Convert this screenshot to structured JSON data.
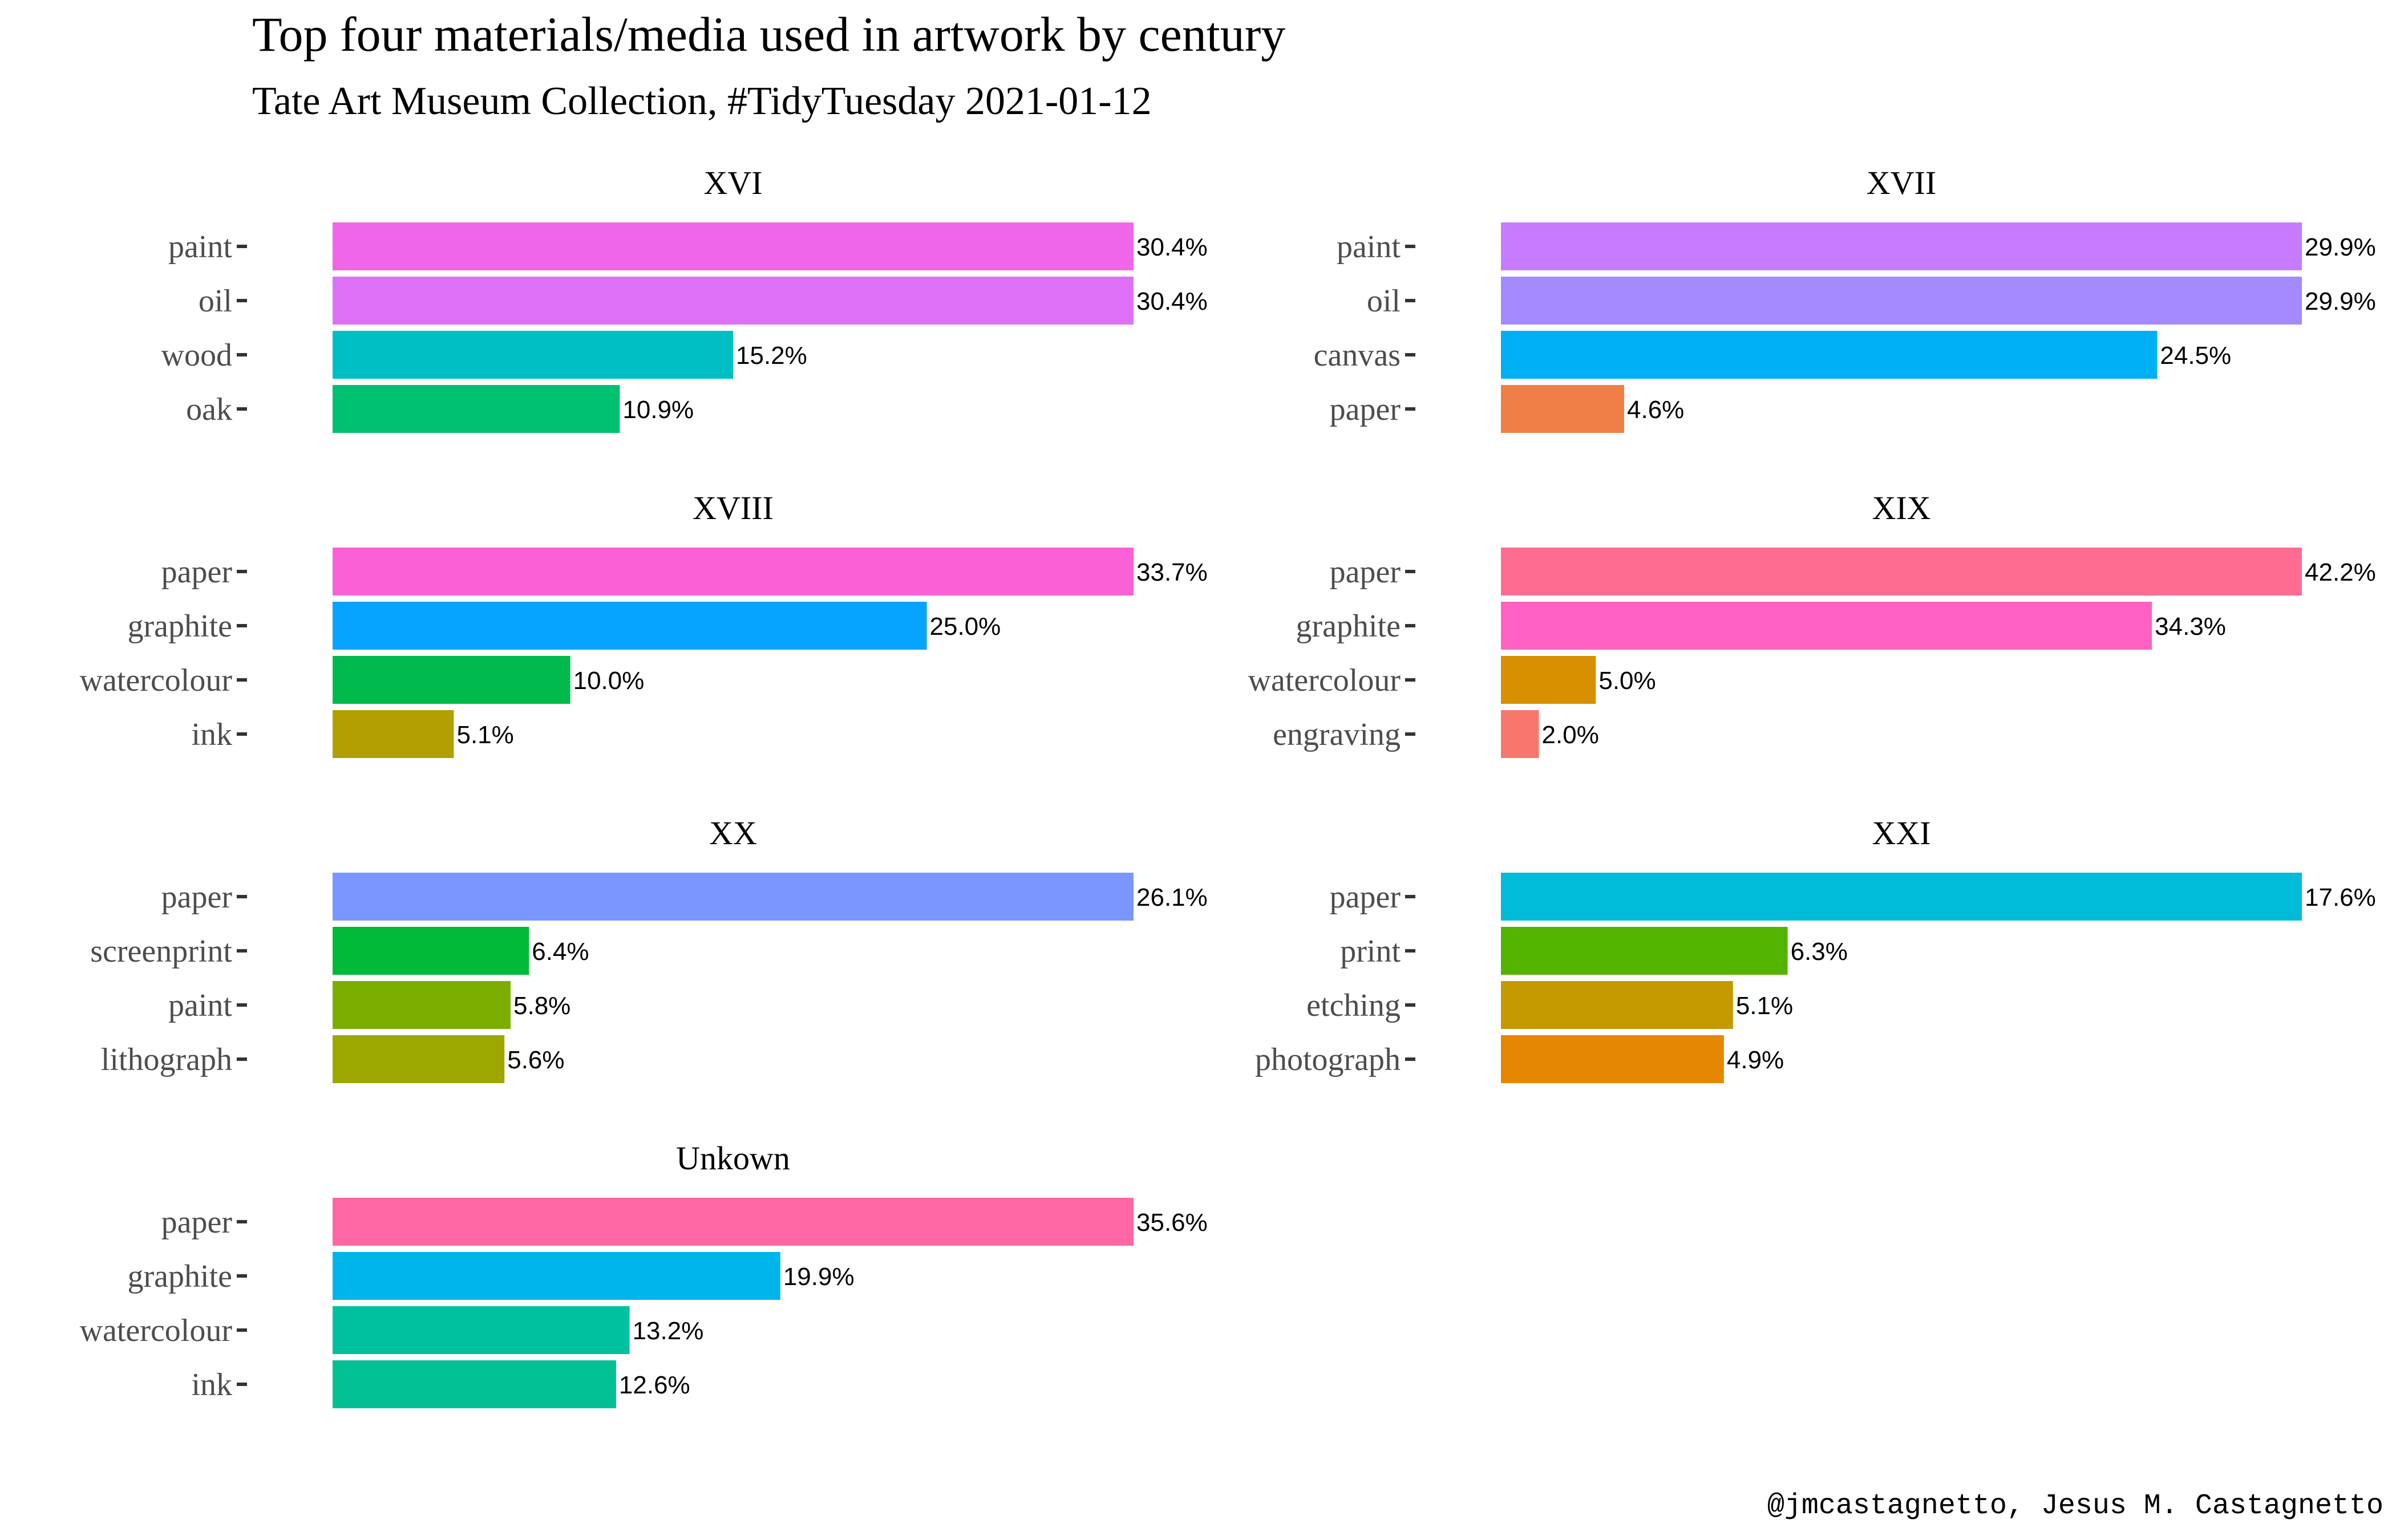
{
  "chart_data": {
    "type": "bar",
    "orientation": "horizontal",
    "facet": "century",
    "title": "Top four materials/media used in artwork by century",
    "subtitle": "Tate Art Museum Collection, #TidyTuesday 2021-01-12",
    "caption": "@jmcastagnetto, Jesus M. Castagnetto",
    "grid": false,
    "legend": "none",
    "value_format": "percent",
    "panels": [
      {
        "name": "XVI",
        "bars": [
          {
            "category": "paint",
            "value": 30.4,
            "label": "30.4%",
            "color": "#F066E8"
          },
          {
            "category": "oil",
            "value": 30.4,
            "label": "30.4%",
            "color": "#DE70F8"
          },
          {
            "category": "wood",
            "value": 15.2,
            "label": "15.2%",
            "color": "#00BFC4"
          },
          {
            "category": "oak",
            "value": 10.9,
            "label": "10.9%",
            "color": "#00C071"
          }
        ]
      },
      {
        "name": "XVII",
        "bars": [
          {
            "category": "paint",
            "value": 29.9,
            "label": "29.9%",
            "color": "#C77CFF"
          },
          {
            "category": "oil",
            "value": 29.9,
            "label": "29.9%",
            "color": "#A58AFF"
          },
          {
            "category": "canvas",
            "value": 24.5,
            "label": "24.5%",
            "color": "#00B0F6"
          },
          {
            "category": "paper",
            "value": 4.6,
            "label": "4.6%",
            "color": "#F07F47"
          }
        ]
      },
      {
        "name": "XVIII",
        "bars": [
          {
            "category": "paper",
            "value": 33.7,
            "label": "33.7%",
            "color": "#FB61D7"
          },
          {
            "category": "graphite",
            "value": 25.0,
            "label": "25.0%",
            "color": "#06A4FF"
          },
          {
            "category": "watercolour",
            "value": 10.0,
            "label": "10.0%",
            "color": "#00BA4E"
          },
          {
            "category": "ink",
            "value": 5.1,
            "label": "5.1%",
            "color": "#B1A000"
          }
        ]
      },
      {
        "name": "XIX",
        "bars": [
          {
            "category": "paper",
            "value": 42.2,
            "label": "42.2%",
            "color": "#FF6C91"
          },
          {
            "category": "graphite",
            "value": 34.3,
            "label": "34.3%",
            "color": "#FF61C3"
          },
          {
            "category": "watercolour",
            "value": 5.0,
            "label": "5.0%",
            "color": "#D89000"
          },
          {
            "category": "engraving",
            "value": 2.0,
            "label": "2.0%",
            "color": "#F8766D"
          }
        ]
      },
      {
        "name": "XX",
        "bars": [
          {
            "category": "paper",
            "value": 26.1,
            "label": "26.1%",
            "color": "#7997FF"
          },
          {
            "category": "screenprint",
            "value": 6.4,
            "label": "6.4%",
            "color": "#00BA38"
          },
          {
            "category": "paint",
            "value": 5.8,
            "label": "5.8%",
            "color": "#7CAE00"
          },
          {
            "category": "lithograph",
            "value": 5.6,
            "label": "5.6%",
            "color": "#9CA700"
          }
        ]
      },
      {
        "name": "XXI",
        "bars": [
          {
            "category": "paper",
            "value": 17.6,
            "label": "17.6%",
            "color": "#00BCD8"
          },
          {
            "category": "print",
            "value": 6.3,
            "label": "6.3%",
            "color": "#53B400"
          },
          {
            "category": "etching",
            "value": 5.1,
            "label": "5.1%",
            "color": "#C49A00"
          },
          {
            "category": "photograph",
            "value": 4.9,
            "label": "4.9%",
            "color": "#E58700"
          }
        ]
      },
      {
        "name": "Unkown",
        "bars": [
          {
            "category": "paper",
            "value": 35.6,
            "label": "35.6%",
            "color": "#FF67A4"
          },
          {
            "category": "graphite",
            "value": 19.9,
            "label": "19.9%",
            "color": "#00B5EA"
          },
          {
            "category": "watercolour",
            "value": 13.2,
            "label": "13.2%",
            "color": "#00C19F"
          },
          {
            "category": "ink",
            "value": 12.6,
            "label": "12.6%",
            "color": "#00C094"
          }
        ]
      }
    ]
  }
}
